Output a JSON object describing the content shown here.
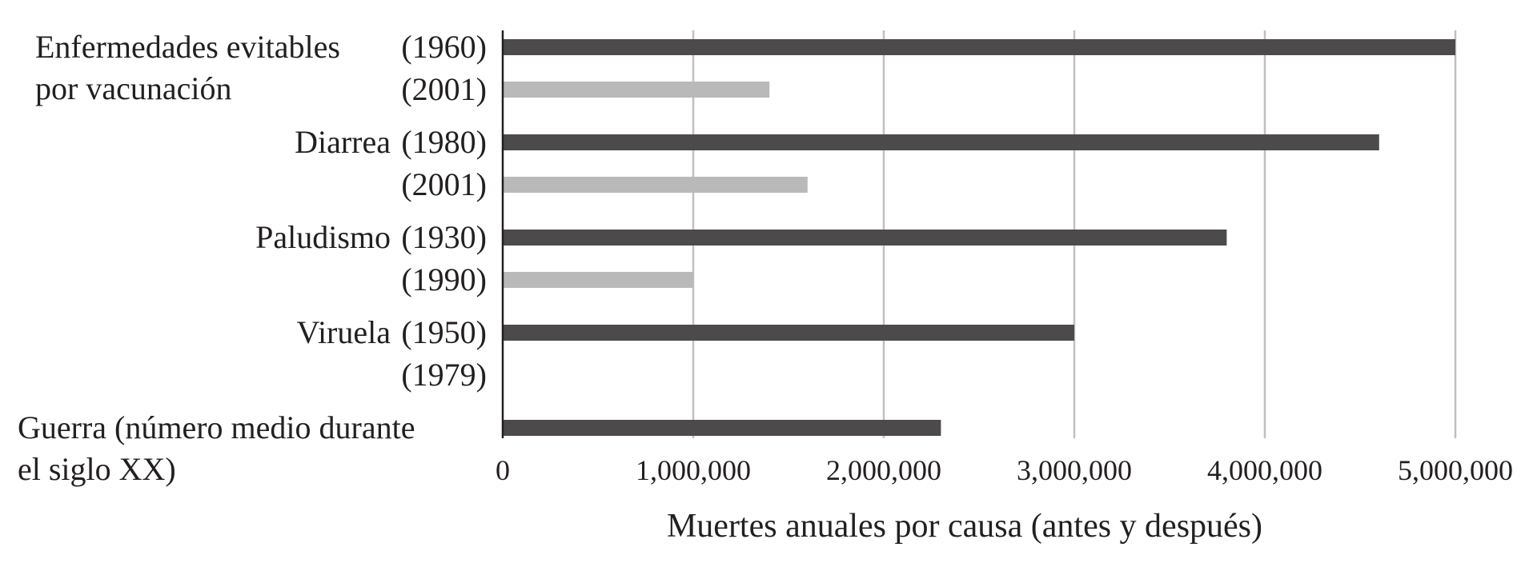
{
  "chart_data": {
    "type": "bar",
    "orientation": "horizontal",
    "xlabel": "Muertes anuales por causa (antes y después)",
    "ylabel": "",
    "title": "",
    "xlim": [
      0,
      5000000
    ],
    "x_ticks": [
      "0",
      "1,000,000",
      "2,000,000",
      "3,000,000",
      "4,000,000",
      "5,000,000"
    ],
    "x_tick_values": [
      0,
      1000000,
      2000000,
      3000000,
      4000000,
      5000000
    ],
    "grid": "vertical",
    "colors": {
      "before": "#4d4a4b",
      "after": "#b9b9b9",
      "grid": "#c0c0c0",
      "text": "#231f20"
    },
    "groups": [
      {
        "name_lines": [
          "Enfermedades evitables",
          "por vacunación"
        ],
        "bars": [
          {
            "year": "(1960)",
            "value": 5000000,
            "kind": "before"
          },
          {
            "year": "(2001)",
            "value": 1400000,
            "kind": "after"
          }
        ]
      },
      {
        "name_lines": [
          "Diarrea"
        ],
        "bars": [
          {
            "year": "(1980)",
            "value": 4600000,
            "kind": "before"
          },
          {
            "year": "(2001)",
            "value": 1600000,
            "kind": "after"
          }
        ]
      },
      {
        "name_lines": [
          "Paludismo"
        ],
        "bars": [
          {
            "year": "(1930)",
            "value": 3800000,
            "kind": "before"
          },
          {
            "year": "(1990)",
            "value": 1000000,
            "kind": "after"
          }
        ]
      },
      {
        "name_lines": [
          "Viruela"
        ],
        "bars": [
          {
            "year": "(1950)",
            "value": 3000000,
            "kind": "before"
          },
          {
            "year": "(1979)",
            "value": 0,
            "kind": "after"
          }
        ]
      },
      {
        "name_lines": [
          "Guerra (número medio durante",
          "el siglo XX)"
        ],
        "bars": [
          {
            "year": "",
            "value": 2300000,
            "kind": "before"
          }
        ]
      }
    ]
  }
}
